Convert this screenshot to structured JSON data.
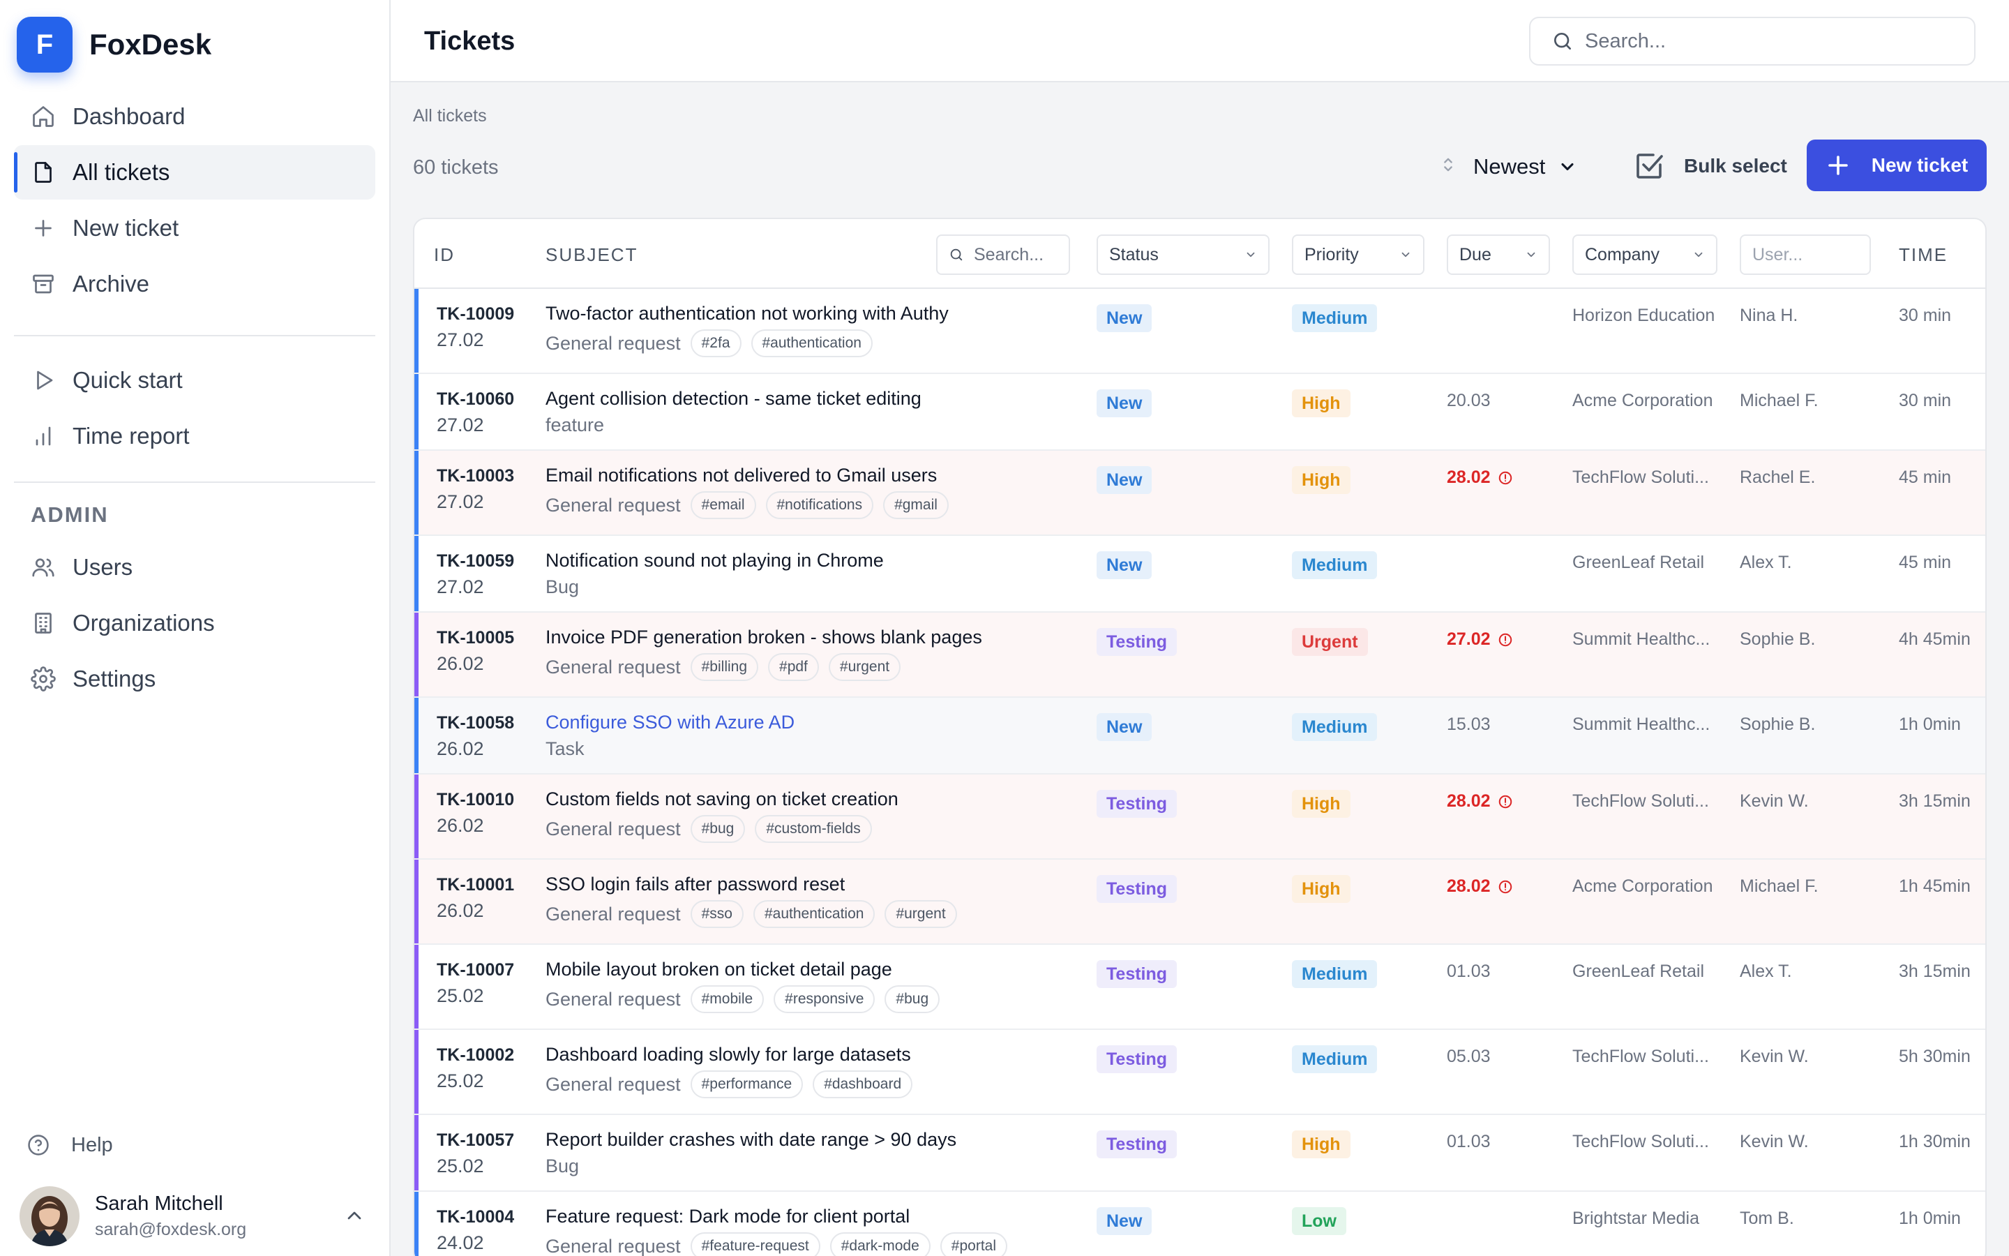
{
  "app": {
    "name": "FoxDesk",
    "logo_letter": "F",
    "accent": "#2563eb"
  },
  "sidebar": {
    "nav": [
      {
        "label": "Dashboard",
        "icon": "home-icon"
      },
      {
        "label": "All tickets",
        "icon": "file-icon",
        "active": true
      },
      {
        "label": "New ticket",
        "icon": "plus-icon"
      },
      {
        "label": "Archive",
        "icon": "archive-icon"
      }
    ],
    "tools": [
      {
        "label": "Quick start",
        "icon": "play-icon"
      },
      {
        "label": "Time report",
        "icon": "bar-chart-icon"
      }
    ],
    "admin_label": "ADMIN",
    "admin": [
      {
        "label": "Users",
        "icon": "users-icon"
      },
      {
        "label": "Organizations",
        "icon": "building-icon"
      },
      {
        "label": "Settings",
        "icon": "gear-icon"
      }
    ],
    "help_label": "Help",
    "user": {
      "name": "Sarah Mitchell",
      "email": "sarah@foxdesk.org"
    }
  },
  "header": {
    "title": "Tickets",
    "search_placeholder": "Search..."
  },
  "toolbar": {
    "breadcrumb": "All tickets",
    "count": "60 tickets",
    "sort_value": "Newest",
    "bulk_label": "Bulk select",
    "new_label": "New ticket"
  },
  "table": {
    "headers": {
      "id": "ID",
      "subject": "SUBJECT",
      "subject_search_placeholder": "Search...",
      "status": "Status",
      "priority": "Priority",
      "due": "Due",
      "company": "Company",
      "user_placeholder": "User...",
      "time": "TIME"
    },
    "rows": [
      {
        "id": "TK-10009",
        "date": "27.02",
        "subject": "Two-factor authentication not working with Authy",
        "type": "General request",
        "tags": [
          "#2fa",
          "#authentication"
        ],
        "status": "New",
        "priority": "Medium",
        "due": "",
        "overdue": false,
        "company": "Horizon Education",
        "user": "Nina H.",
        "time": "30 min"
      },
      {
        "id": "TK-10060",
        "date": "27.02",
        "subject": "Agent collision detection - same ticket editing",
        "type": "feature",
        "tags": [],
        "status": "New",
        "priority": "High",
        "due": "20.03",
        "overdue": false,
        "company": "Acme Corporation",
        "user": "Michael F.",
        "time": "30 min"
      },
      {
        "id": "TK-10003",
        "date": "27.02",
        "subject": "Email notifications not delivered to Gmail users",
        "type": "General request",
        "tags": [
          "#email",
          "#notifications",
          "#gmail"
        ],
        "status": "New",
        "priority": "High",
        "due": "28.02",
        "overdue": true,
        "company": "TechFlow Soluti...",
        "user": "Rachel E.",
        "time": "45 min"
      },
      {
        "id": "TK-10059",
        "date": "27.02",
        "subject": "Notification sound not playing in Chrome",
        "type": "Bug",
        "tags": [],
        "status": "New",
        "priority": "Medium",
        "due": "",
        "overdue": false,
        "company": "GreenLeaf Retail",
        "user": "Alex T.",
        "time": "45 min"
      },
      {
        "id": "TK-10005",
        "date": "26.02",
        "subject": "Invoice PDF generation broken - shows blank pages",
        "type": "General request",
        "tags": [
          "#billing",
          "#pdf",
          "#urgent"
        ],
        "status": "Testing",
        "priority": "Urgent",
        "due": "27.02",
        "overdue": true,
        "company": "Summit Healthc...",
        "user": "Sophie B.",
        "time": "4h 45min"
      },
      {
        "id": "TK-10058",
        "date": "26.02",
        "subject": "Configure SSO with Azure AD",
        "type": "Task",
        "tags": [],
        "status": "New",
        "priority": "Medium",
        "due": "15.03",
        "overdue": false,
        "company": "Summit Healthc...",
        "user": "Sophie B.",
        "time": "1h 0min",
        "link": true
      },
      {
        "id": "TK-10010",
        "date": "26.02",
        "subject": "Custom fields not saving on ticket creation",
        "type": "General request",
        "tags": [
          "#bug",
          "#custom-fields"
        ],
        "status": "Testing",
        "priority": "High",
        "due": "28.02",
        "overdue": true,
        "company": "TechFlow Soluti...",
        "user": "Kevin W.",
        "time": "3h 15min"
      },
      {
        "id": "TK-10001",
        "date": "26.02",
        "subject": "SSO login fails after password reset",
        "type": "General request",
        "tags": [
          "#sso",
          "#authentication",
          "#urgent"
        ],
        "status": "Testing",
        "priority": "High",
        "due": "28.02",
        "overdue": true,
        "company": "Acme Corporation",
        "user": "Michael F.",
        "time": "1h 45min"
      },
      {
        "id": "TK-10007",
        "date": "25.02",
        "subject": "Mobile layout broken on ticket detail page",
        "type": "General request",
        "tags": [
          "#mobile",
          "#responsive",
          "#bug"
        ],
        "status": "Testing",
        "priority": "Medium",
        "due": "01.03",
        "overdue": false,
        "company": "GreenLeaf Retail",
        "user": "Alex T.",
        "time": "3h 15min"
      },
      {
        "id": "TK-10002",
        "date": "25.02",
        "subject": "Dashboard loading slowly for large datasets",
        "type": "General request",
        "tags": [
          "#performance",
          "#dashboard"
        ],
        "status": "Testing",
        "priority": "Medium",
        "due": "05.03",
        "overdue": false,
        "company": "TechFlow Soluti...",
        "user": "Kevin W.",
        "time": "5h 30min"
      },
      {
        "id": "TK-10057",
        "date": "25.02",
        "subject": "Report builder crashes with date range > 90 days",
        "type": "Bug",
        "tags": [],
        "status": "Testing",
        "priority": "High",
        "due": "01.03",
        "overdue": false,
        "company": "TechFlow Soluti...",
        "user": "Kevin W.",
        "time": "1h 30min"
      },
      {
        "id": "TK-10004",
        "date": "24.02",
        "subject": "Feature request: Dark mode for client portal",
        "type": "General request",
        "tags": [
          "#feature-request",
          "#dark-mode",
          "#portal"
        ],
        "status": "New",
        "priority": "Low",
        "due": "",
        "overdue": false,
        "company": "Brightstar Media",
        "user": "Tom B.",
        "time": "1h 0min"
      }
    ]
  }
}
